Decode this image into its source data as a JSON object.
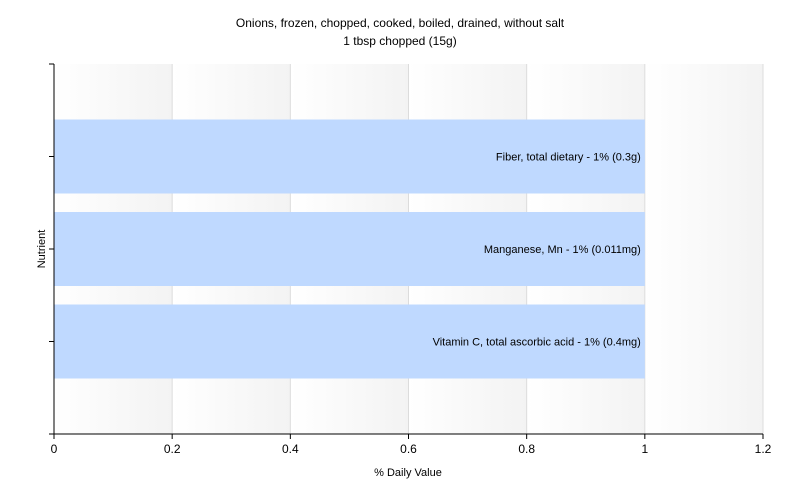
{
  "chart_data": {
    "type": "bar",
    "orientation": "horizontal",
    "title": "Onions, frozen, chopped, cooked, boiled, drained, without salt",
    "subtitle": "1 tbsp chopped (15g)",
    "xlabel": "% Daily Value",
    "ylabel": "Nutrient",
    "xlim": [
      0,
      1.2
    ],
    "xticks": [
      "0",
      "0.2",
      "0.4",
      "0.6",
      "0.8",
      "1",
      "1.2"
    ],
    "grid": true,
    "categories": [
      "Fiber, total dietary",
      "Manganese, Mn",
      "Vitamin C, total ascorbic acid"
    ],
    "values": [
      1,
      1,
      1
    ],
    "bar_labels": [
      "Fiber, total dietary - 1% (0.3g)",
      "Manganese, Mn - 1% (0.011mg)",
      "Vitamin C, total ascorbic acid - 1% (0.4mg)"
    ],
    "colors": {
      "bar": "#bfd9ff",
      "axis": "#000000",
      "gridline": "#dcdcdc",
      "band_light": "#ffffff",
      "band_dark": "#f3f3f3"
    }
  }
}
